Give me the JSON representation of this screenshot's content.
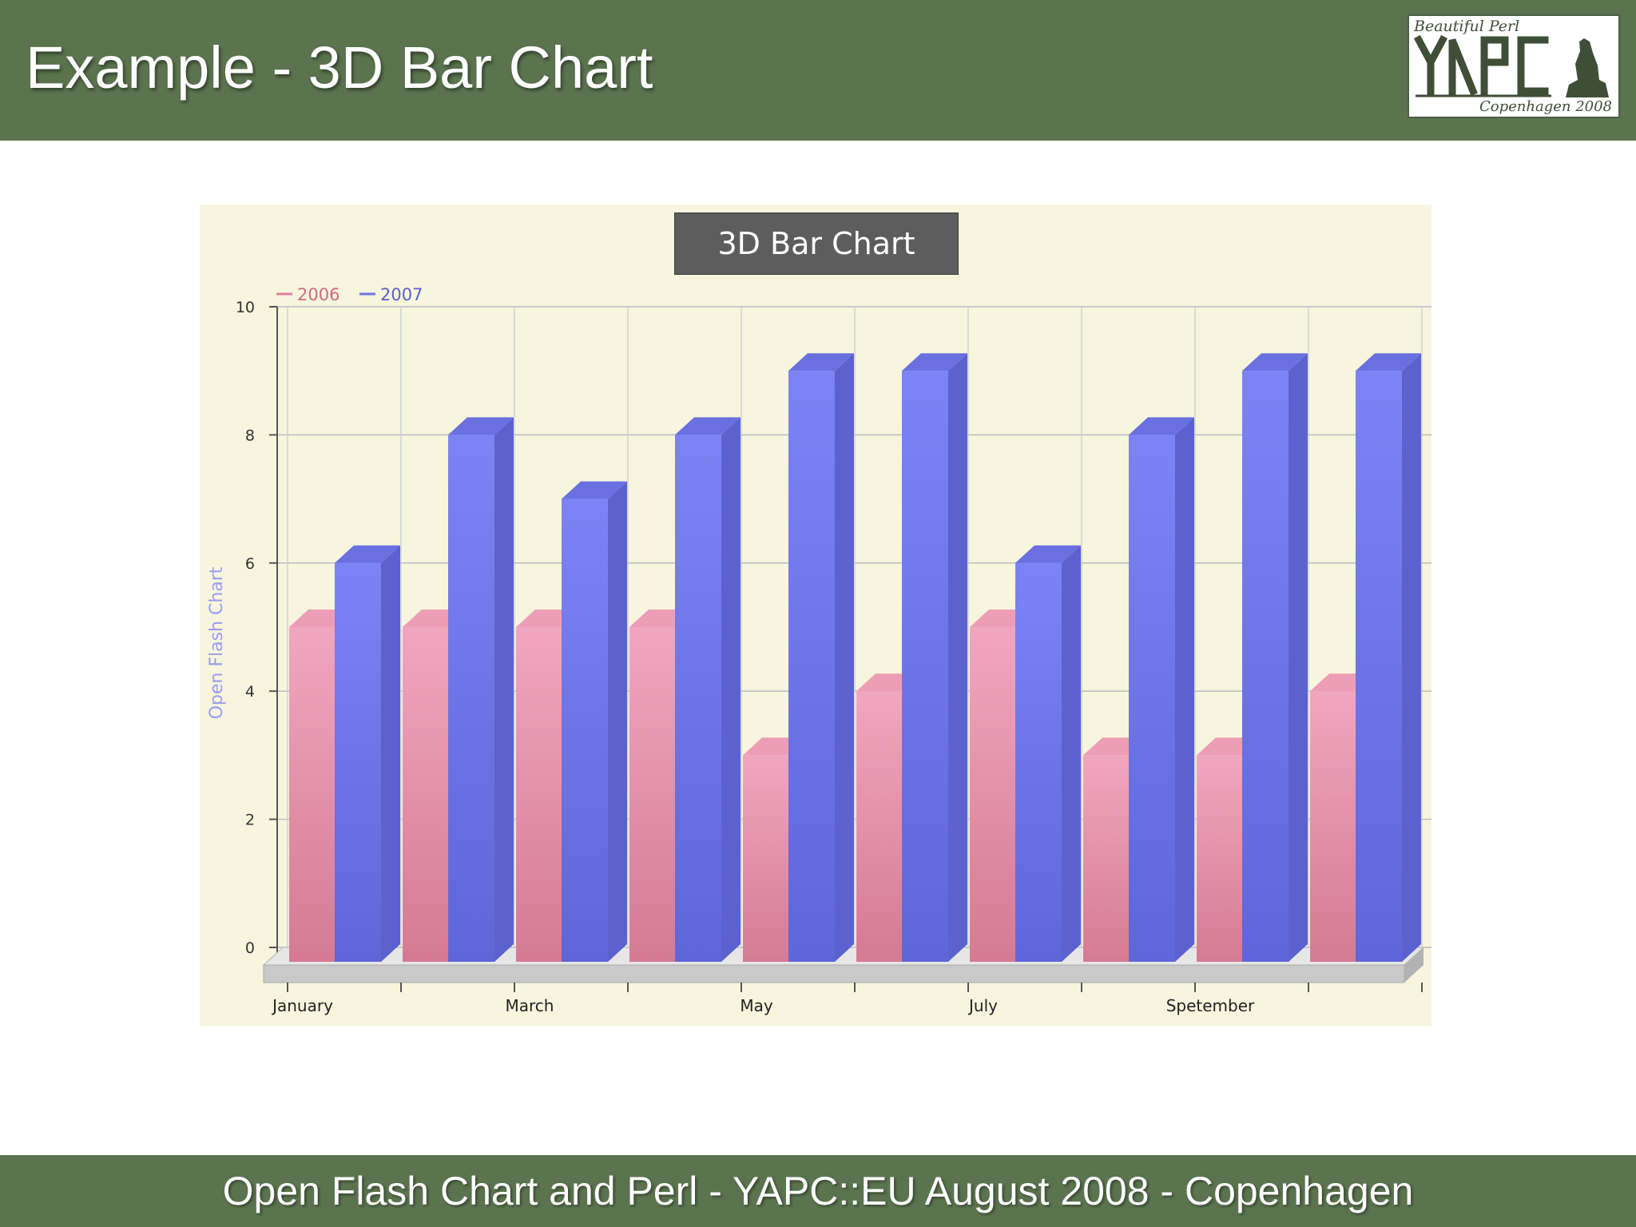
{
  "slide": {
    "title": "Example - 3D Bar Chart",
    "footer": "Open Flash Chart and Perl - YAPC::EU August 2008 - Copenhagen"
  },
  "logo": {
    "top_text": "Beautiful Perl",
    "main_text": "YAPC",
    "bottom_text": "Copenhagen 2008",
    "icon": "little-mermaid-silhouette-icon"
  },
  "colors": {
    "header_bg": "#5b744f",
    "panel_bg": "#f7f5dd",
    "series_2006": "#e0819e",
    "series_2007": "#6c73ea",
    "y_label_color": "#9a9cf0"
  },
  "chart_data": {
    "type": "bar",
    "variant": "3d",
    "title": "3D Bar Chart",
    "ylabel": "Open Flash Chart",
    "xlabel": "",
    "ylim": [
      0,
      10
    ],
    "yticks": [
      0,
      2,
      4,
      6,
      8,
      10
    ],
    "categories": [
      "January",
      "",
      "March",
      "",
      "May",
      "",
      "July",
      "",
      "Spetember",
      ""
    ],
    "series": [
      {
        "name": "2006",
        "color": "#e0819e",
        "values": [
          5,
          5,
          5,
          5,
          3,
          4,
          5,
          3,
          3,
          4
        ]
      },
      {
        "name": "2007",
        "color": "#6c73ea",
        "values": [
          6,
          8,
          7,
          8,
          9,
          9,
          6,
          8,
          9,
          9
        ]
      }
    ],
    "legend_position": "top-left",
    "grid": true
  }
}
